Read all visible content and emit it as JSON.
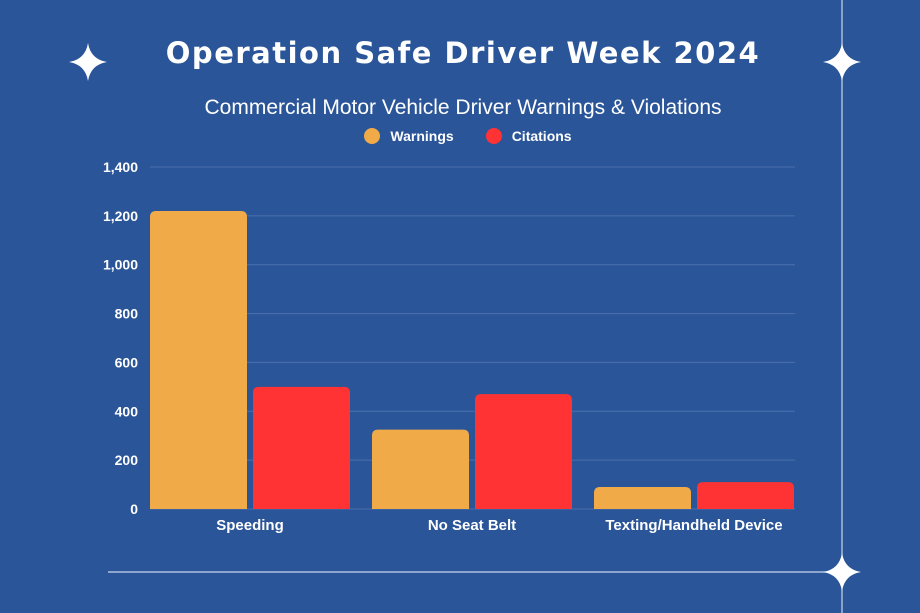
{
  "title": "Operation Safe Driver Week 2024",
  "chart_data": {
    "type": "bar",
    "title": "Commercial Motor Vehicle Driver Warnings & Violations",
    "categories": [
      "Speeding",
      "No Seat Belt",
      "Texting/Handheld Device"
    ],
    "series": [
      {
        "name": "Warnings",
        "color": "#f0ab48",
        "values": [
          1220,
          325,
          90
        ]
      },
      {
        "name": "Citations",
        "color": "#ff3333",
        "values": [
          500,
          470,
          110
        ]
      }
    ],
    "ylim": [
      0,
      1400
    ],
    "yticks": [
      0,
      200,
      400,
      600,
      800,
      1000,
      1200,
      1400
    ],
    "ytick_labels": [
      "0",
      "200",
      "400",
      "600",
      "800",
      "1,000",
      "1,200",
      "1,400"
    ],
    "grid": true,
    "legend_position": "top-center",
    "background_color": "#2a5598"
  }
}
